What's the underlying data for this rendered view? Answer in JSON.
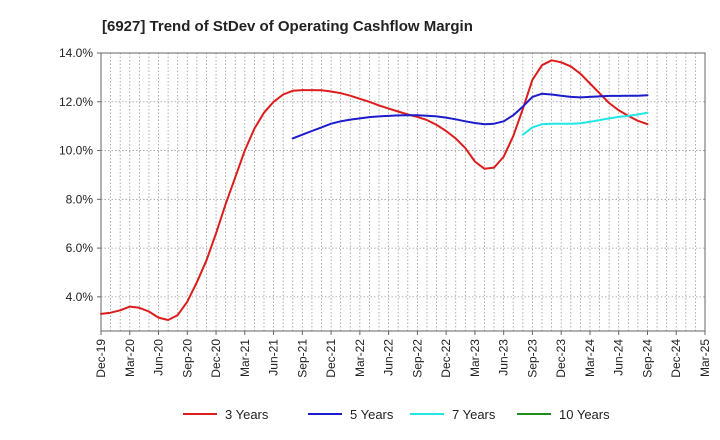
{
  "chart_data": {
    "type": "line",
    "title": "[6927]  Trend of StDev of Operating Cashflow Margin",
    "xlabel": "",
    "ylabel": "",
    "x_ticks": [
      "Dec-19",
      "Mar-20",
      "Jun-20",
      "Sep-20",
      "Dec-20",
      "Mar-21",
      "Jun-21",
      "Sep-21",
      "Dec-21",
      "Mar-22",
      "Jun-22",
      "Sep-22",
      "Dec-22",
      "Mar-23",
      "Jun-23",
      "Sep-23",
      "Dec-23",
      "Mar-24",
      "Jun-24",
      "Sep-24",
      "Dec-24",
      "Mar-25"
    ],
    "y_ticks": [
      "4.0%",
      "6.0%",
      "8.0%",
      "10.0%",
      "12.0%",
      "14.0%"
    ],
    "y_tick_values": [
      4,
      6,
      8,
      10,
      12,
      14
    ],
    "ylim": [
      2.6,
      14.0
    ],
    "grid": true,
    "legend_position": "bottom",
    "series": [
      {
        "name": "3 Years",
        "color": "#dd1c1c",
        "points": [
          [
            "Dec-19",
            3.3
          ],
          [
            "Jan-20",
            3.35
          ],
          [
            "Feb-20",
            3.45
          ],
          [
            "Mar-20",
            3.6
          ],
          [
            "Apr-20",
            3.55
          ],
          [
            "May-20",
            3.4
          ],
          [
            "Jun-20",
            3.15
          ],
          [
            "Jul-20",
            3.05
          ],
          [
            "Aug-20",
            3.25
          ],
          [
            "Sep-20",
            3.8
          ],
          [
            "Oct-20",
            4.6
          ],
          [
            "Nov-20",
            5.5
          ],
          [
            "Dec-20",
            6.6
          ],
          [
            "Jan-21",
            7.8
          ],
          [
            "Feb-21",
            8.9
          ],
          [
            "Mar-21",
            10.0
          ],
          [
            "Apr-21",
            10.9
          ],
          [
            "May-21",
            11.55
          ],
          [
            "Jun-21",
            12.0
          ],
          [
            "Jul-21",
            12.3
          ],
          [
            "Aug-21",
            12.45
          ],
          [
            "Sep-21",
            12.48
          ],
          [
            "Oct-21",
            12.48
          ],
          [
            "Nov-21",
            12.47
          ],
          [
            "Dec-21",
            12.42
          ],
          [
            "Jan-22",
            12.35
          ],
          [
            "Feb-22",
            12.25
          ],
          [
            "Mar-22",
            12.12
          ],
          [
            "Apr-22",
            12.0
          ],
          [
            "May-22",
            11.85
          ],
          [
            "Jun-22",
            11.72
          ],
          [
            "Jul-22",
            11.6
          ],
          [
            "Aug-22",
            11.48
          ],
          [
            "Sep-22",
            11.38
          ],
          [
            "Oct-22",
            11.25
          ],
          [
            "Nov-22",
            11.05
          ],
          [
            "Dec-22",
            10.8
          ],
          [
            "Jan-23",
            10.5
          ],
          [
            "Feb-23",
            10.1
          ],
          [
            "Mar-23",
            9.55
          ],
          [
            "Apr-23",
            9.25
          ],
          [
            "May-23",
            9.3
          ],
          [
            "Jun-23",
            9.75
          ],
          [
            "Jul-23",
            10.6
          ],
          [
            "Aug-23",
            11.7
          ],
          [
            "Sep-23",
            12.9
          ],
          [
            "Oct-23",
            13.5
          ],
          [
            "Nov-23",
            13.7
          ],
          [
            "Dec-23",
            13.62
          ],
          [
            "Jan-24",
            13.45
          ],
          [
            "Feb-24",
            13.15
          ],
          [
            "Mar-24",
            12.75
          ],
          [
            "Apr-24",
            12.35
          ],
          [
            "May-24",
            11.95
          ],
          [
            "Jun-24",
            11.65
          ],
          [
            "Jul-24",
            11.42
          ],
          [
            "Aug-24",
            11.22
          ],
          [
            "Sep-24",
            11.08
          ]
        ]
      },
      {
        "name": "5 Years",
        "color": "#1c1ccc",
        "points": [
          [
            "Aug-21",
            10.5
          ],
          [
            "Sep-21",
            10.65
          ],
          [
            "Oct-21",
            10.8
          ],
          [
            "Nov-21",
            10.95
          ],
          [
            "Dec-21",
            11.1
          ],
          [
            "Jan-22",
            11.2
          ],
          [
            "Feb-22",
            11.27
          ],
          [
            "Mar-22",
            11.32
          ],
          [
            "Apr-22",
            11.37
          ],
          [
            "May-22",
            11.4
          ],
          [
            "Jun-22",
            11.42
          ],
          [
            "Jul-22",
            11.44
          ],
          [
            "Aug-22",
            11.45
          ],
          [
            "Sep-22",
            11.45
          ],
          [
            "Oct-22",
            11.43
          ],
          [
            "Nov-22",
            11.4
          ],
          [
            "Dec-22",
            11.35
          ],
          [
            "Jan-23",
            11.28
          ],
          [
            "Feb-23",
            11.2
          ],
          [
            "Mar-23",
            11.13
          ],
          [
            "Apr-23",
            11.08
          ],
          [
            "May-23",
            11.1
          ],
          [
            "Jun-23",
            11.2
          ],
          [
            "Jul-23",
            11.45
          ],
          [
            "Aug-23",
            11.8
          ],
          [
            "Sep-23",
            12.2
          ],
          [
            "Oct-23",
            12.33
          ],
          [
            "Nov-23",
            12.3
          ],
          [
            "Dec-23",
            12.25
          ],
          [
            "Jan-24",
            12.2
          ],
          [
            "Feb-24",
            12.18
          ],
          [
            "Mar-24",
            12.2
          ],
          [
            "Apr-24",
            12.22
          ],
          [
            "May-24",
            12.24
          ],
          [
            "Jun-24",
            12.24
          ],
          [
            "Jul-24",
            12.25
          ],
          [
            "Aug-24",
            12.25
          ],
          [
            "Sep-24",
            12.27
          ]
        ]
      },
      {
        "name": "7 Years",
        "color": "#22e6e6",
        "points": [
          [
            "Aug-23",
            10.65
          ],
          [
            "Sep-23",
            10.95
          ],
          [
            "Oct-23",
            11.08
          ],
          [
            "Nov-23",
            11.1
          ],
          [
            "Dec-23",
            11.1
          ],
          [
            "Jan-24",
            11.1
          ],
          [
            "Feb-24",
            11.12
          ],
          [
            "Mar-24",
            11.18
          ],
          [
            "Apr-24",
            11.25
          ],
          [
            "May-24",
            11.32
          ],
          [
            "Jun-24",
            11.38
          ],
          [
            "Jul-24",
            11.42
          ],
          [
            "Aug-24",
            11.48
          ],
          [
            "Sep-24",
            11.55
          ]
        ]
      },
      {
        "name": "10 Years",
        "color": "#1e8c1e",
        "points": []
      }
    ]
  }
}
